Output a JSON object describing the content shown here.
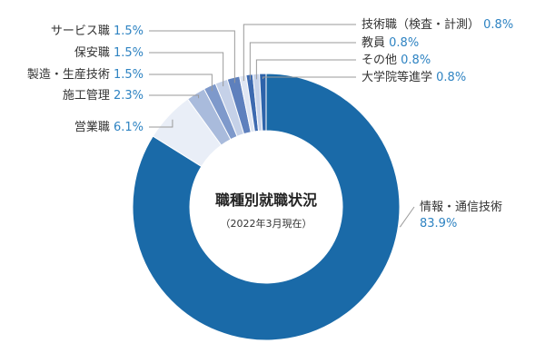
{
  "chart_data": {
    "type": "pie",
    "title": "職種別就職状況",
    "subtitle": "（2022年3月現在）",
    "unit": "%",
    "slices": [
      {
        "name": "情報・通信技術",
        "value": 83.9,
        "label": "83.9%",
        "color": "#1a6aa8"
      },
      {
        "name": "営業職",
        "value": 6.1,
        "label": "6.1%",
        "color": "#e9eef7"
      },
      {
        "name": "施工管理",
        "value": 2.3,
        "label": "2.3%",
        "color": "#a9bbdc"
      },
      {
        "name": "製造・生産技術",
        "value": 1.5,
        "label": "1.5%",
        "color": "#7e99cb"
      },
      {
        "name": "保安職",
        "value": 1.5,
        "label": "1.5%",
        "color": "#c5d1e8"
      },
      {
        "name": "サービス職",
        "value": 1.5,
        "label": "1.5%",
        "color": "#5e80bd"
      },
      {
        "name": "技術職（検査・計測）",
        "value": 0.8,
        "label": "0.8%",
        "color": "#dfe6f3"
      },
      {
        "name": "教員",
        "value": 0.8,
        "label": "0.8%",
        "color": "#3d6ab0"
      },
      {
        "name": "その他",
        "value": 0.8,
        "label": "0.8%",
        "color": "#c7d3ea"
      },
      {
        "name": "大学院等進学",
        "value": 0.8,
        "label": "0.8%",
        "color": "#2d63aa"
      }
    ]
  }
}
